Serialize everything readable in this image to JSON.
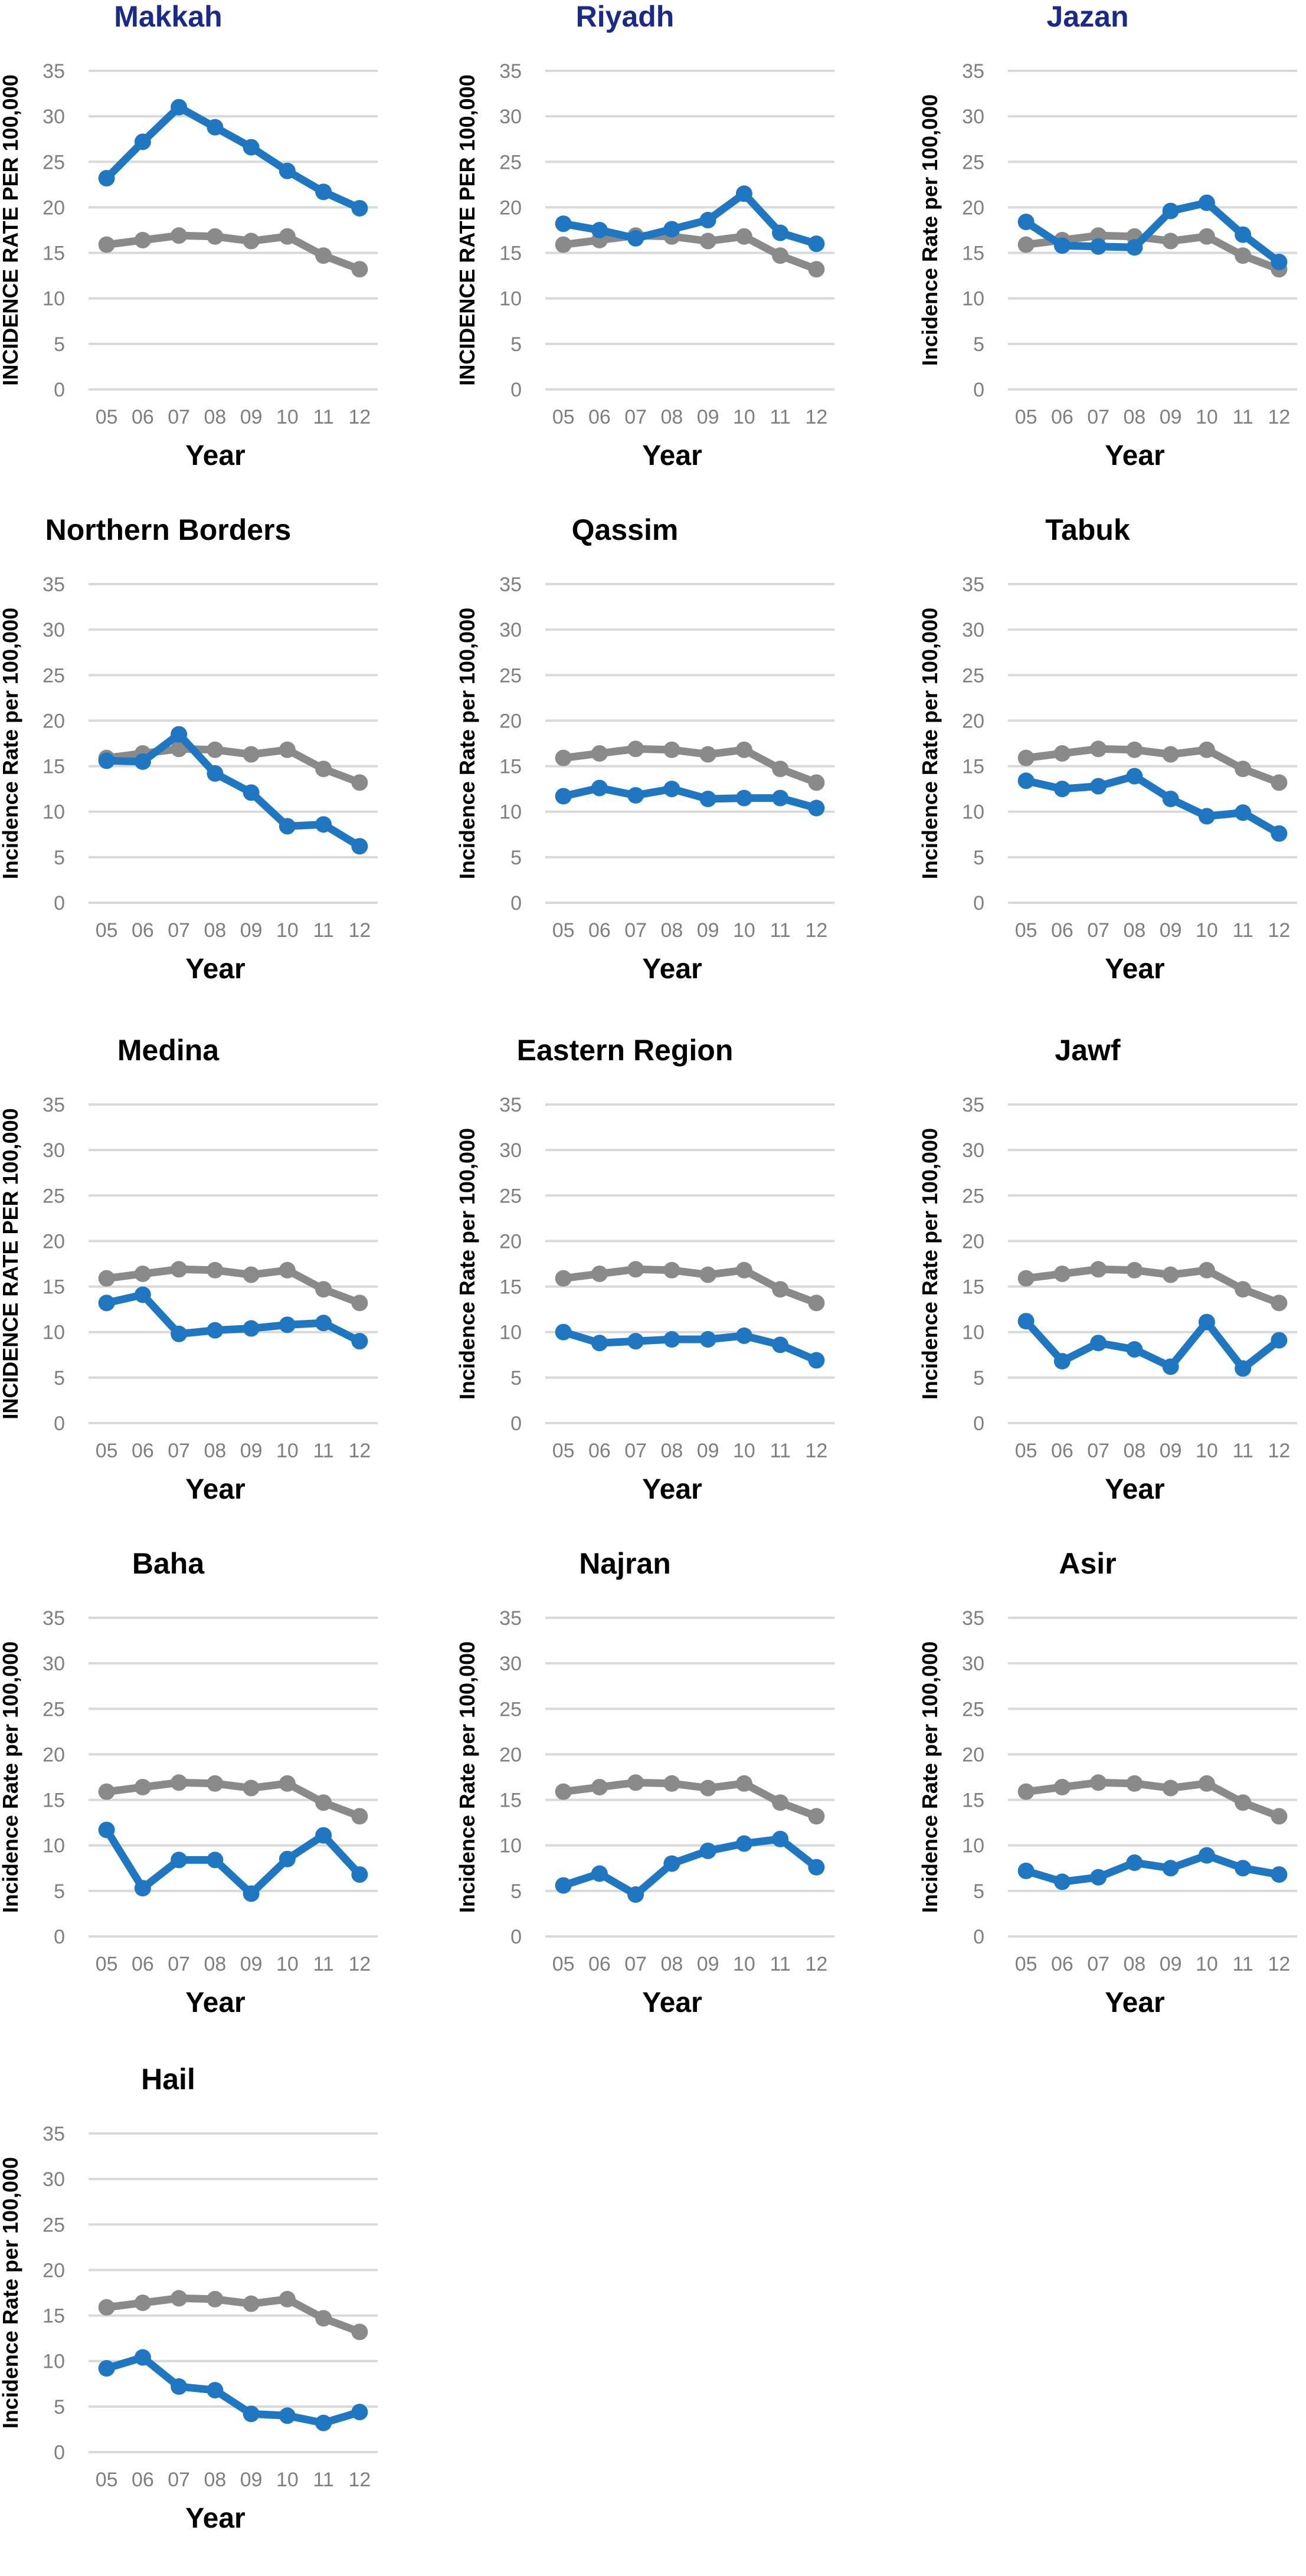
{
  "colors": {
    "region_series": "#1f77c1",
    "reference_series": "#8a8a8a",
    "gridline": "#d9d9d9",
    "tick_text": "#7f7f7f",
    "title_navy": "#1a2a8c",
    "title_black": "#000000"
  },
  "chart_data": [
    {
      "type": "line",
      "title": "Makkah",
      "title_color": "navy",
      "xlabel": "Year",
      "ylabel": "INCIDENCE RATE PER 100,000",
      "categories": [
        "05",
        "06",
        "07",
        "08",
        "09",
        "10",
        "11",
        "12"
      ],
      "yticks": [
        "0",
        "5",
        "10",
        "15",
        "20",
        "25",
        "30",
        "35"
      ],
      "ylim": [
        0,
        35
      ],
      "grid": true,
      "series": [
        {
          "color": "reference",
          "values": [
            15.9,
            16.4,
            16.9,
            16.8,
            16.3,
            16.8,
            14.7,
            13.2
          ]
        },
        {
          "color": "region",
          "values": [
            23.2,
            27.2,
            31.0,
            28.8,
            26.6,
            24.0,
            21.7,
            19.9
          ]
        }
      ]
    },
    {
      "type": "line",
      "title": "Riyadh",
      "title_color": "navy",
      "xlabel": "Year",
      "ylabel": "INCIDENCE RATE PER 100,000",
      "categories": [
        "05",
        "06",
        "07",
        "08",
        "09",
        "10",
        "11",
        "12"
      ],
      "yticks": [
        "0",
        "5",
        "10",
        "15",
        "20",
        "25",
        "30",
        "35"
      ],
      "ylim": [
        0,
        35
      ],
      "grid": true,
      "series": [
        {
          "color": "reference",
          "values": [
            15.9,
            16.4,
            16.9,
            16.8,
            16.3,
            16.8,
            14.7,
            13.2
          ]
        },
        {
          "color": "region",
          "values": [
            18.2,
            17.5,
            16.6,
            17.6,
            18.6,
            21.5,
            17.2,
            16.0
          ]
        }
      ]
    },
    {
      "type": "line",
      "title": "Jazan",
      "title_color": "navy",
      "xlabel": "Year",
      "ylabel": "Incidence Rate per 100,000",
      "categories": [
        "05",
        "06",
        "07",
        "08",
        "09",
        "10",
        "11",
        "12"
      ],
      "yticks": [
        "0",
        "5",
        "10",
        "15",
        "20",
        "25",
        "30",
        "35"
      ],
      "ylim": [
        0,
        35
      ],
      "grid": true,
      "series": [
        {
          "color": "reference",
          "values": [
            15.9,
            16.4,
            16.9,
            16.8,
            16.3,
            16.8,
            14.7,
            13.2
          ]
        },
        {
          "color": "region",
          "values": [
            18.4,
            15.8,
            15.7,
            15.6,
            19.6,
            20.5,
            17.0,
            14.0
          ]
        }
      ]
    },
    {
      "type": "line",
      "title": "Northern Borders",
      "title_color": "black",
      "xlabel": "Year",
      "ylabel": "Incidence Rate per 100,000",
      "categories": [
        "05",
        "06",
        "07",
        "08",
        "09",
        "10",
        "11",
        "12"
      ],
      "yticks": [
        "0",
        "5",
        "10",
        "15",
        "20",
        "25",
        "30",
        "35"
      ],
      "ylim": [
        0,
        35
      ],
      "grid": true,
      "series": [
        {
          "color": "reference",
          "values": [
            15.9,
            16.4,
            16.9,
            16.8,
            16.3,
            16.8,
            14.7,
            13.2
          ]
        },
        {
          "color": "region",
          "values": [
            15.6,
            15.5,
            18.5,
            14.2,
            12.1,
            8.4,
            8.6,
            6.2
          ]
        }
      ]
    },
    {
      "type": "line",
      "title": "Qassim",
      "title_color": "black",
      "xlabel": "Year",
      "ylabel": "Incidence Rate per 100,000",
      "categories": [
        "05",
        "06",
        "07",
        "08",
        "09",
        "10",
        "11",
        "12"
      ],
      "yticks": [
        "0",
        "5",
        "10",
        "15",
        "20",
        "25",
        "30",
        "35"
      ],
      "ylim": [
        0,
        35
      ],
      "grid": true,
      "series": [
        {
          "color": "reference",
          "values": [
            15.9,
            16.4,
            16.9,
            16.8,
            16.3,
            16.8,
            14.7,
            13.2
          ]
        },
        {
          "color": "region",
          "values": [
            11.7,
            12.6,
            11.8,
            12.5,
            11.4,
            11.5,
            11.5,
            10.4
          ]
        }
      ]
    },
    {
      "type": "line",
      "title": "Tabuk",
      "title_color": "black",
      "xlabel": "Year",
      "ylabel": "Incidence Rate per 100,000",
      "categories": [
        "05",
        "06",
        "07",
        "08",
        "09",
        "10",
        "11",
        "12"
      ],
      "yticks": [
        "0",
        "5",
        "10",
        "15",
        "20",
        "25",
        "30",
        "35"
      ],
      "ylim": [
        0,
        35
      ],
      "grid": true,
      "series": [
        {
          "color": "reference",
          "values": [
            15.9,
            16.4,
            16.9,
            16.8,
            16.3,
            16.8,
            14.7,
            13.2
          ]
        },
        {
          "color": "region",
          "values": [
            13.4,
            12.5,
            12.8,
            13.9,
            11.4,
            9.5,
            9.9,
            7.6
          ]
        }
      ]
    },
    {
      "type": "line",
      "title": "Medina",
      "title_color": "black",
      "xlabel": "Year",
      "ylabel": "INCIDENCE RATE PER 100,000",
      "categories": [
        "05",
        "06",
        "07",
        "08",
        "09",
        "10",
        "11",
        "12"
      ],
      "yticks": [
        "0",
        "5",
        "10",
        "15",
        "20",
        "25",
        "30",
        "35"
      ],
      "ylim": [
        0,
        35
      ],
      "grid": true,
      "series": [
        {
          "color": "reference",
          "values": [
            15.9,
            16.4,
            16.9,
            16.8,
            16.3,
            16.8,
            14.7,
            13.2
          ]
        },
        {
          "color": "region",
          "values": [
            13.2,
            14.1,
            9.8,
            10.2,
            10.4,
            10.8,
            11.0,
            9.0
          ]
        }
      ]
    },
    {
      "type": "line",
      "title": "Eastern Region",
      "title_color": "black",
      "xlabel": "Year",
      "ylabel": "Incidence Rate per 100,000",
      "categories": [
        "05",
        "06",
        "07",
        "08",
        "09",
        "10",
        "11",
        "12"
      ],
      "yticks": [
        "0",
        "5",
        "10",
        "15",
        "20",
        "25",
        "30",
        "35"
      ],
      "ylim": [
        0,
        35
      ],
      "grid": true,
      "series": [
        {
          "color": "reference",
          "values": [
            15.9,
            16.4,
            16.9,
            16.8,
            16.3,
            16.8,
            14.7,
            13.2
          ]
        },
        {
          "color": "region",
          "values": [
            10.0,
            8.8,
            9.0,
            9.2,
            9.2,
            9.6,
            8.6,
            6.9
          ]
        }
      ]
    },
    {
      "type": "line",
      "title": "Jawf",
      "title_color": "black",
      "xlabel": "Year",
      "ylabel": "Incidence Rate per 100,000",
      "categories": [
        "05",
        "06",
        "07",
        "08",
        "09",
        "10",
        "11",
        "12"
      ],
      "yticks": [
        "0",
        "5",
        "10",
        "15",
        "20",
        "25",
        "30",
        "35"
      ],
      "ylim": [
        0,
        35
      ],
      "grid": true,
      "series": [
        {
          "color": "reference",
          "values": [
            15.9,
            16.4,
            16.9,
            16.8,
            16.3,
            16.8,
            14.7,
            13.2
          ]
        },
        {
          "color": "region",
          "values": [
            11.2,
            6.8,
            8.8,
            8.1,
            6.2,
            11.1,
            6.0,
            9.1
          ]
        }
      ]
    },
    {
      "type": "line",
      "title": "Baha",
      "title_color": "black",
      "xlabel": "Year",
      "ylabel": "Incidence Rate per 100,000",
      "categories": [
        "05",
        "06",
        "07",
        "08",
        "09",
        "10",
        "11",
        "12"
      ],
      "yticks": [
        "0",
        "5",
        "10",
        "15",
        "20",
        "25",
        "30",
        "35"
      ],
      "ylim": [
        0,
        35
      ],
      "grid": true,
      "series": [
        {
          "color": "reference",
          "values": [
            15.9,
            16.4,
            16.9,
            16.8,
            16.3,
            16.8,
            14.7,
            13.2
          ]
        },
        {
          "color": "region",
          "values": [
            11.7,
            5.3,
            8.4,
            8.4,
            4.7,
            8.5,
            11.1,
            6.8
          ]
        }
      ]
    },
    {
      "type": "line",
      "title": "Najran",
      "title_color": "black",
      "xlabel": "Year",
      "ylabel": "Incidence Rate per 100,000",
      "categories": [
        "05",
        "06",
        "07",
        "08",
        "09",
        "10",
        "11",
        "12"
      ],
      "yticks": [
        "0",
        "5",
        "10",
        "15",
        "20",
        "25",
        "30",
        "35"
      ],
      "ylim": [
        0,
        35
      ],
      "grid": true,
      "series": [
        {
          "color": "reference",
          "values": [
            15.9,
            16.4,
            16.9,
            16.8,
            16.3,
            16.8,
            14.7,
            13.2
          ]
        },
        {
          "color": "region",
          "values": [
            5.6,
            6.9,
            4.6,
            8.0,
            9.4,
            10.2,
            10.7,
            7.6
          ]
        }
      ]
    },
    {
      "type": "line",
      "title": "Asir",
      "title_color": "black",
      "xlabel": "Year",
      "ylabel": "Incidence Rate per 100,000",
      "categories": [
        "05",
        "06",
        "07",
        "08",
        "09",
        "10",
        "11",
        "12"
      ],
      "yticks": [
        "0",
        "5",
        "10",
        "15",
        "20",
        "25",
        "30",
        "35"
      ],
      "ylim": [
        0,
        35
      ],
      "grid": true,
      "series": [
        {
          "color": "reference",
          "values": [
            15.9,
            16.4,
            16.9,
            16.8,
            16.3,
            16.8,
            14.7,
            13.2
          ]
        },
        {
          "color": "region",
          "values": [
            7.2,
            6.0,
            6.5,
            8.1,
            7.5,
            8.9,
            7.5,
            6.8
          ]
        }
      ]
    },
    {
      "type": "line",
      "title": "Hail",
      "title_color": "black",
      "xlabel": "Year",
      "ylabel": "Incidence Rate per 100,000",
      "categories": [
        "05",
        "06",
        "07",
        "08",
        "09",
        "10",
        "11",
        "12"
      ],
      "yticks": [
        "0",
        "5",
        "10",
        "15",
        "20",
        "25",
        "30",
        "35"
      ],
      "ylim": [
        0,
        35
      ],
      "grid": true,
      "series": [
        {
          "color": "reference",
          "values": [
            15.9,
            16.4,
            16.9,
            16.8,
            16.3,
            16.8,
            14.7,
            13.2
          ]
        },
        {
          "color": "region",
          "values": [
            9.2,
            10.4,
            7.2,
            6.8,
            4.2,
            4.0,
            3.2,
            4.4
          ]
        }
      ]
    }
  ]
}
